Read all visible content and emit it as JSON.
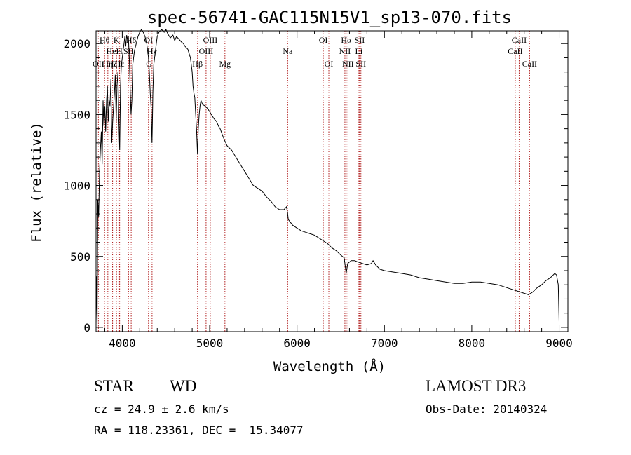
{
  "chart_data": {
    "type": "line",
    "title": "spec-56741-GAC115N15V1_sp13-070.fits",
    "xlabel": "Wavelength (Å)",
    "ylabel": "Flux (relative)",
    "xlim": [
      3700,
      9100
    ],
    "ylim": [
      -30,
      2090
    ],
    "xticks": [
      4000,
      5000,
      6000,
      7000,
      8000,
      9000
    ],
    "xtick_labels": [
      "4000",
      "5000",
      "6000",
      "7000",
      "8000",
      "9000"
    ],
    "yticks": [
      0,
      500,
      1000,
      1500,
      2000
    ],
    "ytick_labels": [
      "0",
      "500",
      "1000",
      "1500",
      "2000"
    ],
    "line_color": "#000000",
    "marker_color": "#b22222",
    "series": [
      {
        "name": "flux",
        "points": [
          [
            3700,
            50
          ],
          [
            3705,
            360
          ],
          [
            3712,
            20
          ],
          [
            3720,
            900
          ],
          [
            3730,
            780
          ],
          [
            3740,
            1100
          ],
          [
            3750,
            1250
          ],
          [
            3760,
            1380
          ],
          [
            3770,
            1150
          ],
          [
            3780,
            1600
          ],
          [
            3790,
            1420
          ],
          [
            3800,
            1560
          ],
          [
            3810,
            1380
          ],
          [
            3820,
            1600
          ],
          [
            3830,
            1700
          ],
          [
            3840,
            1450
          ],
          [
            3850,
            1600
          ],
          [
            3860,
            1560
          ],
          [
            3870,
            1750
          ],
          [
            3880,
            1300
          ],
          [
            3890,
            1450
          ],
          [
            3900,
            1550
          ],
          [
            3910,
            1650
          ],
          [
            3920,
            1780
          ],
          [
            3930,
            1450
          ],
          [
            3940,
            1700
          ],
          [
            3950,
            1800
          ],
          [
            3960,
            1480
          ],
          [
            3970,
            1250
          ],
          [
            3980,
            1700
          ],
          [
            3990,
            1850
          ],
          [
            4000,
            1900
          ],
          [
            4010,
            1950
          ],
          [
            4020,
            2000
          ],
          [
            4030,
            2050
          ],
          [
            4040,
            1980
          ],
          [
            4050,
            2060
          ],
          [
            4060,
            2030
          ],
          [
            4070,
            2050
          ],
          [
            4080,
            1900
          ],
          [
            4090,
            1700
          ],
          [
            4100,
            1500
          ],
          [
            4110,
            1600
          ],
          [
            4120,
            1850
          ],
          [
            4140,
            1950
          ],
          [
            4160,
            2000
          ],
          [
            4180,
            2050
          ],
          [
            4200,
            2080
          ],
          [
            4220,
            2100
          ],
          [
            4240,
            2080
          ],
          [
            4260,
            2050
          ],
          [
            4280,
            2000
          ],
          [
            4300,
            1900
          ],
          [
            4310,
            1800
          ],
          [
            4320,
            1650
          ],
          [
            4330,
            1550
          ],
          [
            4340,
            1300
          ],
          [
            4345,
            1450
          ],
          [
            4350,
            1650
          ],
          [
            4360,
            1850
          ],
          [
            4380,
            1950
          ],
          [
            4400,
            2050
          ],
          [
            4420,
            2080
          ],
          [
            4450,
            2100
          ],
          [
            4480,
            2080
          ],
          [
            4500,
            2100
          ],
          [
            4520,
            2070
          ],
          [
            4550,
            2040
          ],
          [
            4580,
            2060
          ],
          [
            4600,
            2020
          ],
          [
            4620,
            2050
          ],
          [
            4650,
            2030
          ],
          [
            4680,
            2010
          ],
          [
            4700,
            2000
          ],
          [
            4720,
            1980
          ],
          [
            4750,
            1960
          ],
          [
            4780,
            1900
          ],
          [
            4800,
            1800
          ],
          [
            4810,
            1700
          ],
          [
            4820,
            1650
          ],
          [
            4830,
            1620
          ],
          [
            4840,
            1500
          ],
          [
            4850,
            1400
          ],
          [
            4861,
            1220
          ],
          [
            4870,
            1400
          ],
          [
            4880,
            1500
          ],
          [
            4890,
            1560
          ],
          [
            4900,
            1600
          ],
          [
            4920,
            1570
          ],
          [
            4950,
            1560
          ],
          [
            4980,
            1540
          ],
          [
            5000,
            1520
          ],
          [
            5020,
            1500
          ],
          [
            5050,
            1470
          ],
          [
            5080,
            1450
          ],
          [
            5100,
            1420
          ],
          [
            5120,
            1400
          ],
          [
            5150,
            1350
          ],
          [
            5170,
            1320
          ],
          [
            5200,
            1280
          ],
          [
            5250,
            1250
          ],
          [
            5300,
            1200
          ],
          [
            5350,
            1150
          ],
          [
            5400,
            1100
          ],
          [
            5450,
            1050
          ],
          [
            5500,
            1000
          ],
          [
            5550,
            980
          ],
          [
            5600,
            960
          ],
          [
            5650,
            920
          ],
          [
            5700,
            890
          ],
          [
            5750,
            850
          ],
          [
            5800,
            830
          ],
          [
            5850,
            830
          ],
          [
            5880,
            850
          ],
          [
            5893,
            800
          ],
          [
            5900,
            760
          ],
          [
            5950,
            720
          ],
          [
            6000,
            700
          ],
          [
            6050,
            680
          ],
          [
            6100,
            670
          ],
          [
            6150,
            660
          ],
          [
            6200,
            650
          ],
          [
            6250,
            630
          ],
          [
            6300,
            610
          ],
          [
            6350,
            590
          ],
          [
            6400,
            560
          ],
          [
            6450,
            540
          ],
          [
            6500,
            510
          ],
          [
            6540,
            490
          ],
          [
            6563,
            380
          ],
          [
            6580,
            450
          ],
          [
            6620,
            470
          ],
          [
            6660,
            470
          ],
          [
            6700,
            460
          ],
          [
            6750,
            450
          ],
          [
            6800,
            440
          ],
          [
            6850,
            450
          ],
          [
            6870,
            470
          ],
          [
            6900,
            440
          ],
          [
            6950,
            410
          ],
          [
            7000,
            400
          ],
          [
            7100,
            390
          ],
          [
            7200,
            380
          ],
          [
            7300,
            370
          ],
          [
            7400,
            350
          ],
          [
            7500,
            340
          ],
          [
            7600,
            330
          ],
          [
            7700,
            320
          ],
          [
            7800,
            310
          ],
          [
            7900,
            310
          ],
          [
            8000,
            320
          ],
          [
            8100,
            320
          ],
          [
            8200,
            310
          ],
          [
            8300,
            300
          ],
          [
            8400,
            280
          ],
          [
            8500,
            260
          ],
          [
            8600,
            240
          ],
          [
            8650,
            230
          ],
          [
            8700,
            250
          ],
          [
            8750,
            280
          ],
          [
            8800,
            300
          ],
          [
            8850,
            330
          ],
          [
            8900,
            350
          ],
          [
            8950,
            380
          ],
          [
            8970,
            370
          ],
          [
            8990,
            300
          ],
          [
            9000,
            40
          ]
        ]
      }
    ],
    "line_markers": [
      {
        "label": "OII",
        "wavelength": 3727,
        "row": 2
      },
      {
        "label": "Hη",
        "wavelength": 3835,
        "row": 2
      },
      {
        "label": "Hζ",
        "wavelength": 3889,
        "row": 2
      },
      {
        "label": "Hε",
        "wavelength": 3970,
        "row": 2
      },
      {
        "label": "HeI",
        "wavelength": 3889,
        "row": 1
      },
      {
        "label": "Hθ",
        "wavelength": 3798,
        "row": 0
      },
      {
        "label": "K",
        "wavelength": 3934,
        "row": 0
      },
      {
        "label": "H",
        "wavelength": 3968,
        "row": 1
      },
      {
        "label": "SII",
        "wavelength": 4072,
        "row": 1
      },
      {
        "label": "Hδ",
        "wavelength": 4102,
        "row": 0
      },
      {
        "label": "OI",
        "wavelength": 4300,
        "row": 0
      },
      {
        "label": "G",
        "wavelength": 4305,
        "row": 2
      },
      {
        "label": "Hγ",
        "wavelength": 4341,
        "row": 1
      },
      {
        "label": "Hβ",
        "wavelength": 4861,
        "row": 2
      },
      {
        "label": "OIII",
        "wavelength": 4959,
        "row": 1
      },
      {
        "label": "OIII",
        "wavelength": 5007,
        "row": 0
      },
      {
        "label": "Mg",
        "wavelength": 5175,
        "row": 2
      },
      {
        "label": "Na",
        "wavelength": 5893,
        "row": 1
      },
      {
        "label": "OI",
        "wavelength": 6300,
        "row": 0
      },
      {
        "label": "OI",
        "wavelength": 6364,
        "row": 2
      },
      {
        "label": "NII",
        "wavelength": 6548,
        "row": 1
      },
      {
        "label": "Hα",
        "wavelength": 6563,
        "row": 0
      },
      {
        "label": "NII",
        "wavelength": 6583,
        "row": 2
      },
      {
        "label": "Li",
        "wavelength": 6708,
        "row": 1
      },
      {
        "label": "SII",
        "wavelength": 6716,
        "row": 0
      },
      {
        "label": "SII",
        "wavelength": 6731,
        "row": 2
      },
      {
        "label": "CaII",
        "wavelength": 8498,
        "row": 1
      },
      {
        "label": "CaII",
        "wavelength": 8542,
        "row": 0
      },
      {
        "label": "CaII",
        "wavelength": 8662,
        "row": 2
      }
    ]
  },
  "footer": {
    "object_class": "STAR",
    "subclass": "WD",
    "survey": "LAMOST DR3",
    "redshift": "cz = 24.9 ± 2.6 km/s",
    "obs_date": "Obs-Date: 20140324",
    "coordinates": "RA = 118.23361, DEC =  15.34077"
  }
}
